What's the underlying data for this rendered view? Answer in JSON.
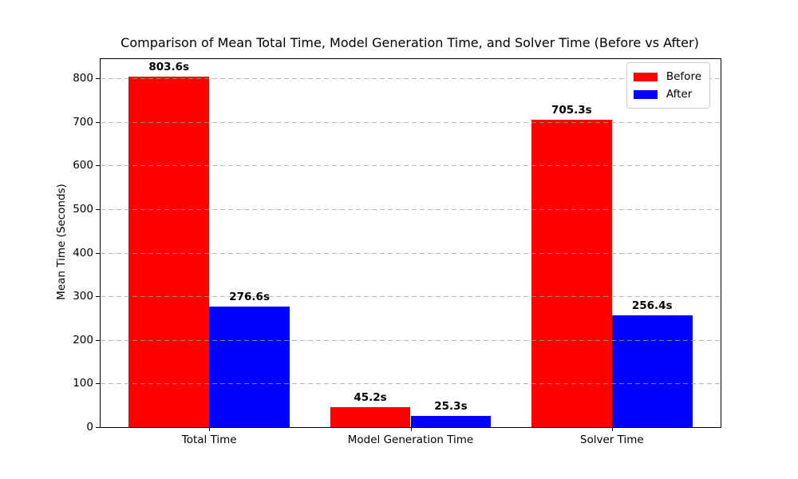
{
  "title": "Comparison of Mean Total Time, Model Generation Time, and Solver Time (Before vs After)",
  "chart_data": {
    "type": "bar",
    "title": "Comparison of Mean Total Time, Model Generation Time, and Solver Time (Before vs After)",
    "categories": [
      "Total Time",
      "Model Generation Time",
      "Solver Time"
    ],
    "series": [
      {
        "name": "Before",
        "color": "#ff0000",
        "values": [
          803.6,
          45.2,
          705.3
        ],
        "value_labels": [
          "803.6s",
          "45.2s",
          "705.3s"
        ]
      },
      {
        "name": "After",
        "color": "#0000ff",
        "values": [
          276.6,
          25.3,
          256.4
        ],
        "value_labels": [
          "276.6s",
          "25.3s",
          "256.4s"
        ]
      }
    ],
    "xlabel": "",
    "ylabel": "Mean Time (Seconds)",
    "yticks": [
      0,
      100,
      200,
      300,
      400,
      500,
      600,
      700,
      800
    ],
    "ylim": [
      0,
      843.8
    ],
    "bar_width": 0.4,
    "grid": "horizontal dashed, drawn above bars",
    "legend_position": "upper right",
    "legend_entries": [
      "Before",
      "After"
    ]
  }
}
